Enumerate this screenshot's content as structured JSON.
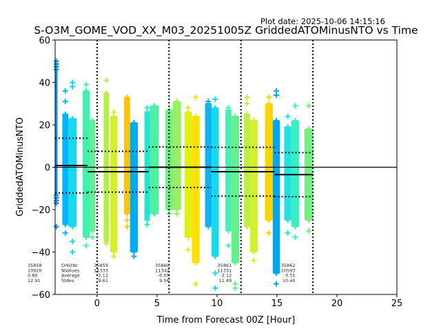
{
  "chart_data": {
    "type": "scatter",
    "title": "S-O3M_GOME_VOD_XX_M03_20251005Z GriddedATOMinusNTO vs Time",
    "plot_date": "Plot date: 2025-10-06 14:15:16",
    "xlabel": "Time from Forecast 00Z [Hour]",
    "ylabel": "GriddedATOMinusNTO",
    "xlim": [
      -3.5,
      25
    ],
    "ylim": [
      -60,
      60
    ],
    "xticks": [
      0,
      5,
      10,
      15,
      20,
      25
    ],
    "yticks": [
      -60,
      -40,
      -20,
      0,
      20,
      40,
      60
    ],
    "xtick_labels": [
      "0",
      "5",
      "10",
      "15",
      "20",
      "25"
    ],
    "ytick_labels": [
      "−60",
      "−40",
      "−20",
      "0",
      "20",
      "40",
      "60"
    ],
    "grid": false,
    "zero_line": 0,
    "orbit_boundaries": [
      0,
      6,
      12,
      18
    ],
    "orbits": [
      {
        "orbit_nr": "35858",
        "n_values": "10920",
        "average": 0.8,
        "stdev": 12.91,
        "average_label": "0.80",
        "stdev_label": "12.91",
        "x_range": [
          -3.5,
          -0.8
        ]
      },
      {
        "orbit_nr": "35859",
        "n_values": "11333",
        "average": -2.12,
        "stdev": 9.61,
        "average_label": "-2.12",
        "stdev_label": "9.61",
        "x_range": [
          -0.8,
          4.3
        ]
      },
      {
        "orbit_nr": "35860",
        "n_values": "11342",
        "average": -0.01,
        "stdev": 9.56,
        "average_label": "-0.01",
        "stdev_label": "9.56",
        "x_range": [
          4.3,
          9.5
        ]
      },
      {
        "orbit_nr": "35861",
        "n_values": "11331",
        "average": -2.12,
        "stdev": 11.49,
        "average_label": "-2.12",
        "stdev_label": "11.49",
        "x_range": [
          9.5,
          14.8
        ]
      },
      {
        "orbit_nr": "35862",
        "n_values": "10593",
        "average": -3.51,
        "stdev": 10.4,
        "average_label": "-3.51",
        "stdev_label": "10.40",
        "x_range": [
          14.8,
          18.0
        ]
      }
    ],
    "stat_labels": [
      "OrbitNr",
      "NValues",
      "Average",
      "Stdev"
    ],
    "stripes": [
      {
        "x": [
          -3.5,
          -3.3
        ],
        "color": "#0a8fe6",
        "range": [
          -17,
          50
        ],
        "outliers": [
          -28
        ]
      },
      {
        "x": [
          -2.9,
          -2.4
        ],
        "color": "#00b4ff",
        "range": [
          -27,
          25
        ],
        "outliers": [
          36,
          31,
          -31
        ]
      },
      {
        "x": [
          -2.4,
          -1.7
        ],
        "color": "#18d8f0",
        "range": [
          -28,
          23
        ],
        "outliers": [
          40,
          38,
          -40,
          -35
        ]
      },
      {
        "x": [
          -1.2,
          -0.6
        ],
        "color": "#40f0b0",
        "range": [
          -33,
          36
        ],
        "outliers": [
          39,
          -37
        ]
      },
      {
        "x": [
          -0.6,
          -0.15
        ],
        "color": "#62f092",
        "range": [
          -30,
          22
        ],
        "outliers": [
          -33
        ]
      },
      {
        "x": [
          0.55,
          1.0
        ],
        "color": "#b4f044",
        "range": [
          -35,
          35
        ],
        "outliers": [
          41,
          -36
        ]
      },
      {
        "x": [
          1.1,
          1.7
        ],
        "color": "#d4f024",
        "range": [
          -40,
          24
        ],
        "outliers": [
          26,
          -42
        ]
      },
      {
        "x": [
          2.25,
          2.75
        ],
        "color": "#ffc400",
        "range": [
          -22,
          33
        ],
        "outliers": [
          -28,
          -25
        ]
      },
      {
        "x": [
          2.75,
          3.4
        ],
        "color": "#00aaf2",
        "range": [
          -40,
          21
        ],
        "outliers": [
          -42
        ]
      },
      {
        "x": [
          3.95,
          4.4
        ],
        "color": "#22e6d2",
        "range": [
          -25,
          26
        ],
        "outliers": [
          28,
          -27
        ]
      },
      {
        "x": [
          4.4,
          5.15
        ],
        "color": "#4ef0a2",
        "range": [
          -22,
          29
        ],
        "outliers": []
      },
      {
        "x": [
          5.7,
          6.3
        ],
        "color": "#72f080",
        "range": [
          -20,
          27
        ],
        "outliers": [
          -22
        ]
      },
      {
        "x": [
          6.3,
          7.0
        ],
        "color": "#98f062",
        "range": [
          -20,
          31
        ],
        "outliers": [
          -22
        ]
      },
      {
        "x": [
          7.3,
          7.9
        ],
        "color": "#e0f012",
        "range": [
          -33,
          26
        ],
        "outliers": [
          28,
          -39
        ]
      },
      {
        "x": [
          7.9,
          8.55
        ],
        "color": "#ffe000",
        "range": [
          -45,
          24
        ],
        "outliers": [
          33,
          -55
        ]
      },
      {
        "x": [
          9.0,
          9.55
        ],
        "color": "#10b2f2",
        "range": [
          -28,
          30
        ],
        "outliers": [
          31
        ]
      },
      {
        "x": [
          9.55,
          10.15
        ],
        "color": "#12daf0",
        "range": [
          -42,
          28
        ],
        "outliers": [
          32,
          -50,
          -57
        ]
      },
      {
        "x": [
          10.7,
          11.2
        ],
        "color": "#44f0b2",
        "range": [
          -30,
          27
        ],
        "outliers": [
          28,
          -37
        ]
      },
      {
        "x": [
          11.2,
          11.85
        ],
        "color": "#64f08e",
        "range": [
          -45,
          24
        ],
        "outliers": [
          -55,
          -57
        ]
      },
      {
        "x": [
          12.25,
          12.75
        ],
        "color": "#bcf040",
        "range": [
          -28,
          25
        ],
        "outliers": [
          33,
          30
        ]
      },
      {
        "x": [
          12.75,
          13.4
        ],
        "color": "#d2f02e",
        "range": [
          -40,
          22
        ],
        "outliers": [
          -44
        ]
      },
      {
        "x": [
          14.0,
          14.65
        ],
        "color": "#ffd400",
        "range": [
          -25,
          30
        ],
        "outliers": [
          33,
          -31
        ]
      },
      {
        "x": [
          14.65,
          15.25
        ],
        "color": "#00a8f0",
        "range": [
          -50,
          22
        ],
        "outliers": [
          36,
          34,
          -55
        ]
      },
      {
        "x": [
          15.6,
          16.2
        ],
        "color": "#22e2e0",
        "range": [
          -25,
          19
        ],
        "outliers": [
          24,
          -31
        ]
      },
      {
        "x": [
          16.2,
          16.85
        ],
        "color": "#34f0c2",
        "range": [
          -28,
          22
        ],
        "outliers": [
          29,
          -33
        ]
      },
      {
        "x": [
          17.3,
          18.0
        ],
        "color": "#72f080",
        "range": [
          -25,
          18
        ],
        "outliers": [
          29,
          -30
        ]
      }
    ]
  }
}
